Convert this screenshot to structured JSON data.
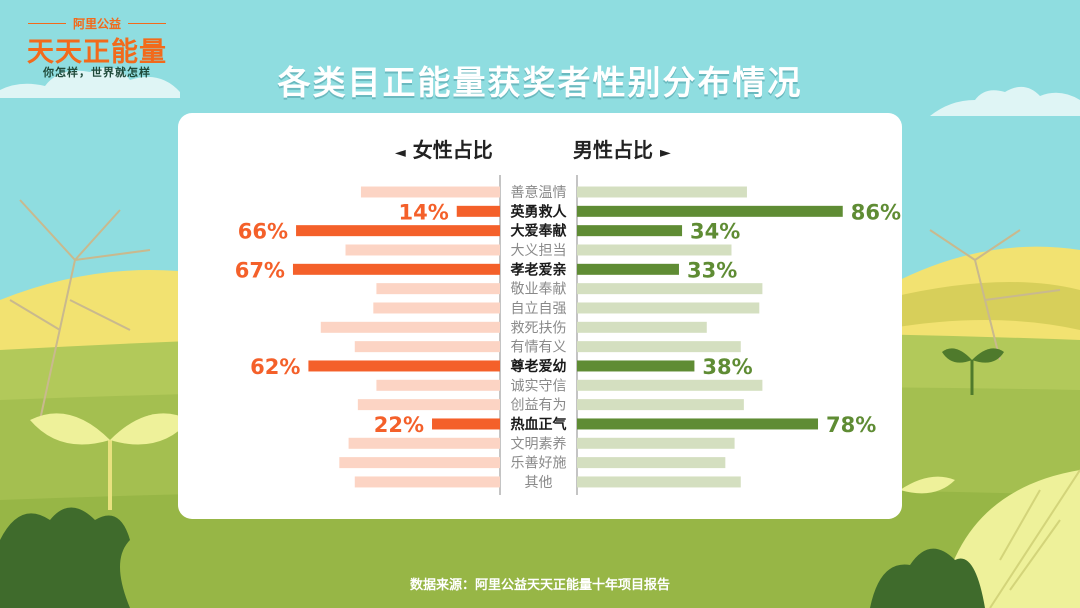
{
  "logo": {
    "org": "阿里公益",
    "name": "天天正能量",
    "slogan": "你怎样，世界就怎样"
  },
  "title": "各类目正能量获奖者性别分布情况",
  "headers": {
    "female": "女性占比",
    "male": "男性占比",
    "female_arrow": "◄",
    "male_arrow": "►"
  },
  "source": "数据来源：阿里公益天天正能量十年项目报告",
  "colors": {
    "female": "#f4602a",
    "female_light": "#fcd4c4",
    "male": "#5f8c34",
    "male_light": "#d4dfc0",
    "label_dim": "#8a8a8a",
    "label_bold": "#1a1a1a"
  },
  "chart_data": {
    "type": "bar",
    "orientation": "horizontal-diverging",
    "categories": [
      "善意温情",
      "英勇救人",
      "大爱奉献",
      "大义担当",
      "孝老爱亲",
      "敬业奉献",
      "自立自强",
      "救死扶伤",
      "有情有义",
      "尊老爱幼",
      "诚实守信",
      "创益有为",
      "热血正气",
      "文明素养",
      "乐善好施",
      "其他"
    ],
    "series": [
      {
        "name": "女性占比",
        "values": [
          45,
          14,
          66,
          50,
          67,
          40,
          41,
          58,
          47,
          62,
          40,
          46,
          22,
          49,
          52,
          47
        ],
        "labeled": [
          false,
          true,
          true,
          false,
          true,
          false,
          false,
          false,
          false,
          true,
          false,
          false,
          true,
          false,
          false,
          false
        ]
      },
      {
        "name": "男性占比",
        "values": [
          55,
          86,
          34,
          50,
          33,
          60,
          59,
          42,
          53,
          38,
          60,
          54,
          78,
          51,
          48,
          53
        ],
        "labeled": [
          false,
          true,
          true,
          false,
          true,
          false,
          false,
          false,
          false,
          true,
          false,
          false,
          true,
          false,
          false,
          false
        ]
      }
    ],
    "highlighted": [
      "英勇救人",
      "大爱奉献",
      "孝老爱亲",
      "尊老爱幼",
      "热血正气"
    ],
    "value_suffix": "%",
    "xlim": [
      0,
      100
    ]
  }
}
